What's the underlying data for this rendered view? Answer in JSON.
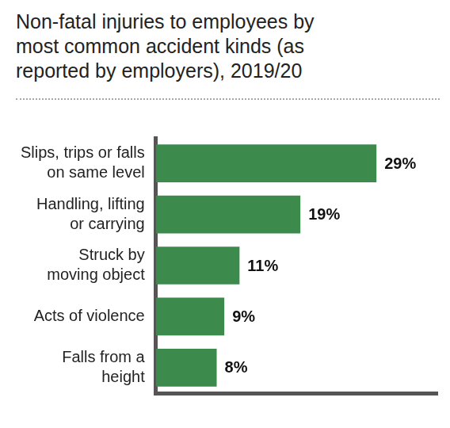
{
  "chart_data": {
    "type": "bar",
    "title": "Non-fatal injuries to employees by\nmost common accident kinds (as\nreported by employers), 2019/20",
    "categories": [
      "Slips, trips or falls\non same level",
      "Handling, lifting\nor carrying",
      "Struck by\nmoving object",
      "Acts of violence",
      "Falls from a\nheight"
    ],
    "values": [
      29,
      19,
      11,
      9,
      8
    ],
    "value_labels": [
      "29%",
      "19%",
      "11%",
      "9%",
      "8%"
    ],
    "color": "#3c8a4c",
    "orientation": "horizontal",
    "ylim": [
      0,
      37
    ],
    "grid": false,
    "data_labels": true,
    "tick_labels": "x"
  }
}
